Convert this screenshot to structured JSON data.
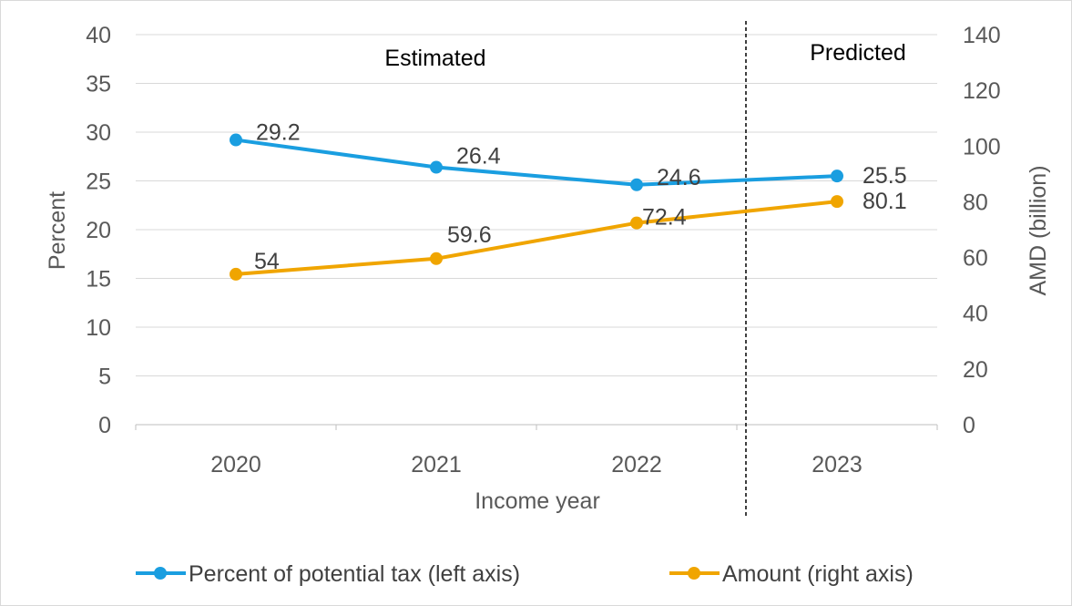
{
  "chart_data": {
    "type": "line",
    "title": "",
    "categories": [
      "2020",
      "2021",
      "2022",
      "2023"
    ],
    "xlabel": "Income year",
    "ylabel": "Percent",
    "y2label": "AMD (billion)",
    "ylim": [
      0,
      40
    ],
    "yticks": [
      "0",
      "5",
      "10",
      "15",
      "20",
      "25",
      "30",
      "35",
      "40"
    ],
    "y2lim": [
      0,
      140
    ],
    "y2ticks": [
      "0",
      "20",
      "40",
      "60",
      "80",
      "100",
      "120",
      "140"
    ],
    "grid": true,
    "legend_position": "bottom",
    "annotations": [
      "Estimated",
      "Predicted"
    ],
    "divider_between": [
      "2022",
      "2023"
    ],
    "series": [
      {
        "name": "Percent of potential tax (left axis)",
        "axis": "left",
        "color": "#1a9ee0",
        "values": [
          29.2,
          26.4,
          24.6,
          25.5
        ],
        "labels": [
          "29.2",
          "26.4",
          "24.6",
          "25.5"
        ]
      },
      {
        "name": "Amount (right axis)",
        "axis": "right",
        "color": "#f0a500",
        "values": [
          54,
          59.6,
          72.4,
          80.1
        ],
        "labels": [
          "54",
          "59.6",
          "72.4",
          "80.1"
        ]
      }
    ]
  }
}
